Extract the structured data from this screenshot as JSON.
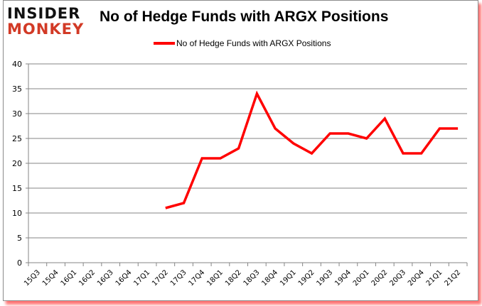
{
  "logo": {
    "line1": "INSIDER",
    "line2": "MONKEY"
  },
  "chart_data": {
    "type": "line",
    "title": "No of Hedge Funds with ARGX Positions",
    "xlabel": "",
    "ylabel": "",
    "ylim": [
      0,
      40
    ],
    "yticks": [
      0,
      5,
      10,
      15,
      20,
      25,
      30,
      35,
      40
    ],
    "grid": true,
    "legend_position": "top",
    "categories": [
      "15Q3",
      "15Q4",
      "16Q1",
      "16Q2",
      "16Q3",
      "16Q4",
      "17Q1",
      "17Q2",
      "17Q3",
      "17Q4",
      "18Q1",
      "18Q2",
      "18Q3",
      "18Q4",
      "19Q1",
      "19Q2",
      "19Q3",
      "19Q4",
      "20Q1",
      "20Q2",
      "20Q3",
      "20Q4",
      "21Q1",
      "21Q2"
    ],
    "series": [
      {
        "name": "No of Hedge Funds with ARGX Positions",
        "color": "#ff0000",
        "values": [
          null,
          null,
          null,
          null,
          null,
          null,
          null,
          11,
          12,
          21,
          21,
          23,
          34,
          27,
          24,
          22,
          26,
          26,
          25,
          29,
          22,
          22,
          27,
          27
        ]
      }
    ]
  }
}
